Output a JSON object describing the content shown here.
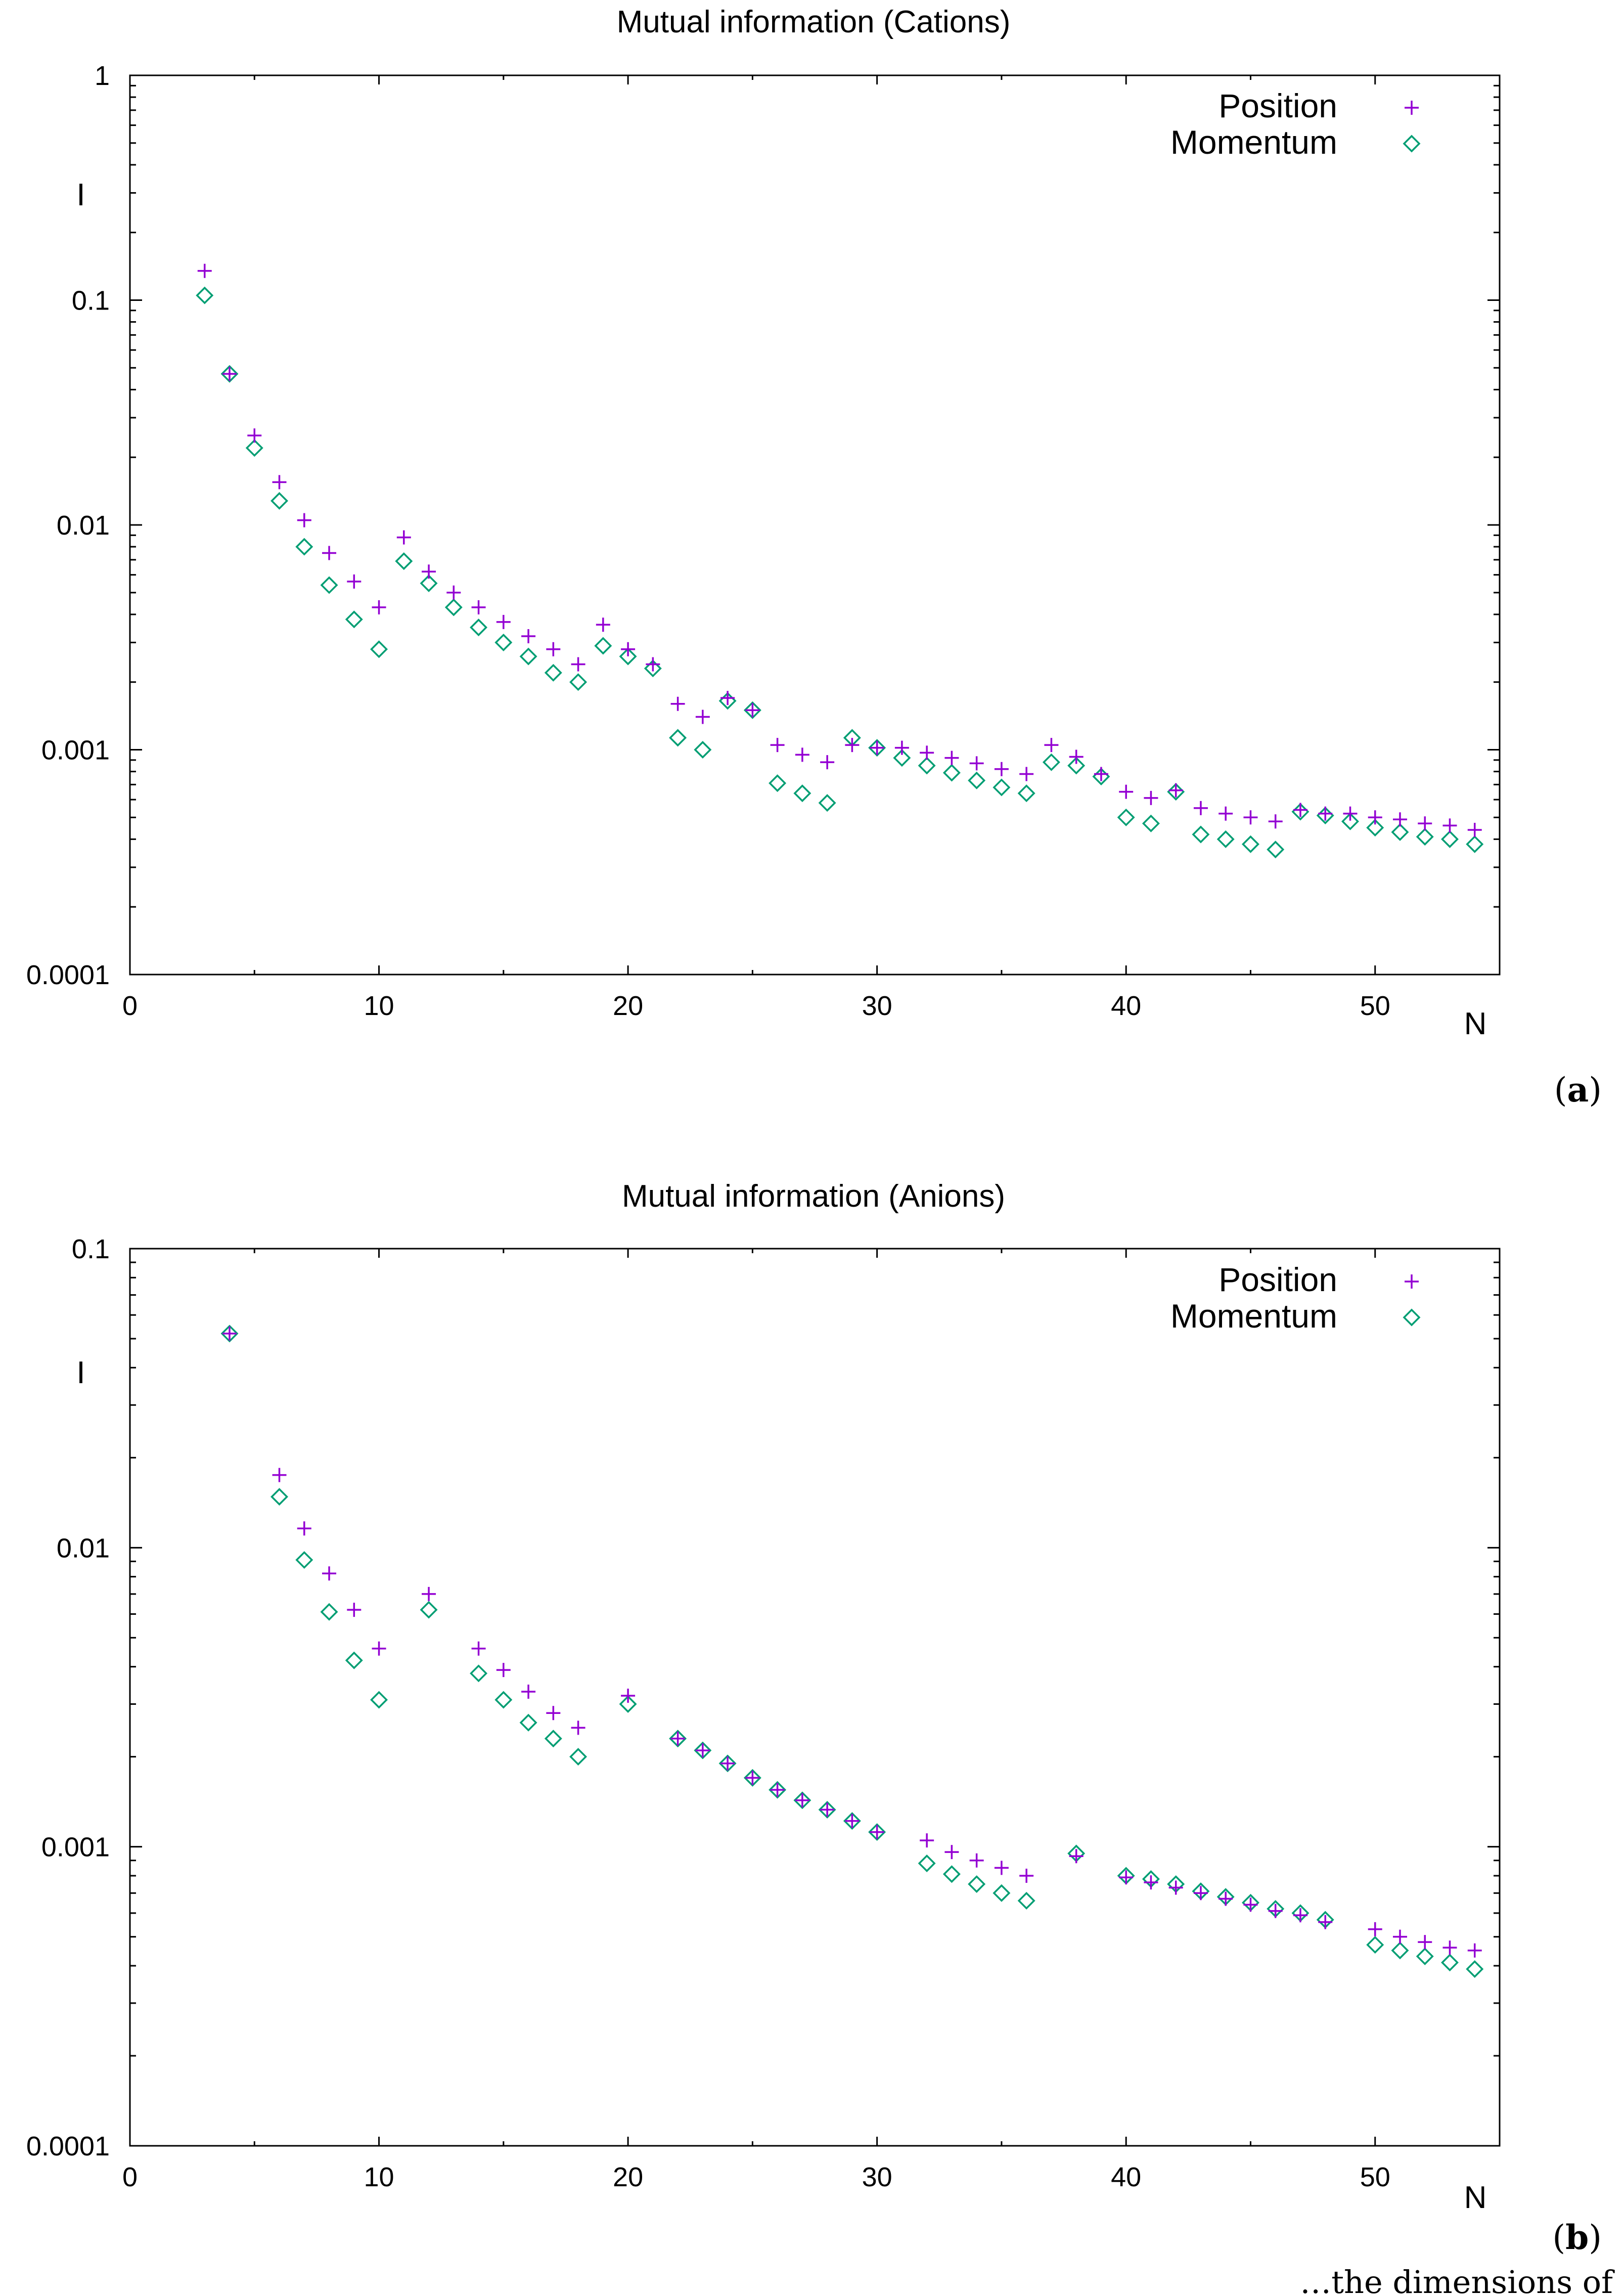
{
  "chart_data": [
    {
      "id": "a",
      "type": "scatter",
      "title": "Mutual information (Cations)",
      "xlabel": "N",
      "ylabel": "I",
      "yscale": "log",
      "xlim": [
        0,
        55
      ],
      "ylim": [
        0.0001,
        1
      ],
      "grid": false,
      "legend_position": "top-right",
      "panel_label": "a",
      "xticks": [
        "0",
        "10",
        "20",
        "30",
        "40",
        "50"
      ],
      "yticks": [
        "1",
        "0.1",
        "0.01",
        "0.001",
        "0.0001"
      ],
      "series": [
        {
          "name": "Position",
          "marker": "plus",
          "color": "#9400d3",
          "x": [
            3,
            4,
            5,
            6,
            7,
            8,
            9,
            10,
            11,
            12,
            13,
            14,
            15,
            16,
            17,
            18,
            19,
            20,
            21,
            22,
            23,
            24,
            25,
            26,
            27,
            28,
            29,
            30,
            31,
            32,
            33,
            34,
            35,
            36,
            37,
            38,
            39,
            40,
            41,
            42,
            43,
            44,
            45,
            46,
            47,
            48,
            49,
            50,
            51,
            52,
            53,
            54
          ],
          "y": [
            0.135,
            0.047,
            0.025,
            0.0155,
            0.0105,
            0.0075,
            0.0056,
            0.0043,
            0.0088,
            0.0062,
            0.005,
            0.0043,
            0.0037,
            0.0032,
            0.0028,
            0.0024,
            0.0036,
            0.0028,
            0.0024,
            0.0016,
            0.0014,
            0.0017,
            0.0015,
            0.00105,
            0.00095,
            0.00088,
            0.00105,
            0.00102,
            0.00102,
            0.00097,
            0.00092,
            0.00087,
            0.00082,
            0.00078,
            0.00105,
            0.00093,
            0.00078,
            0.00065,
            0.00061,
            0.00066,
            0.00055,
            0.00052,
            0.0005,
            0.00048,
            0.00054,
            0.00052,
            0.00052,
            0.0005,
            0.00049,
            0.00047,
            0.00046,
            0.00044
          ]
        },
        {
          "name": "Momentum",
          "marker": "diamond",
          "color": "#009e73",
          "x": [
            3,
            4,
            5,
            6,
            7,
            8,
            9,
            10,
            11,
            12,
            13,
            14,
            15,
            16,
            17,
            18,
            19,
            20,
            21,
            22,
            23,
            24,
            25,
            26,
            27,
            28,
            29,
            30,
            31,
            32,
            33,
            34,
            35,
            36,
            37,
            38,
            39,
            40,
            41,
            42,
            43,
            44,
            45,
            46,
            47,
            48,
            49,
            50,
            51,
            52,
            53,
            54
          ],
          "y": [
            0.105,
            0.047,
            0.022,
            0.0128,
            0.008,
            0.0054,
            0.0038,
            0.0028,
            0.0069,
            0.0055,
            0.0043,
            0.0035,
            0.003,
            0.0026,
            0.0022,
            0.002,
            0.0029,
            0.0026,
            0.0023,
            0.00113,
            0.001,
            0.00165,
            0.0015,
            0.00071,
            0.00064,
            0.00058,
            0.00113,
            0.00102,
            0.00092,
            0.00085,
            0.00079,
            0.00073,
            0.00068,
            0.00064,
            0.00088,
            0.00085,
            0.00076,
            0.0005,
            0.00047,
            0.00065,
            0.00042,
            0.0004,
            0.00038,
            0.00036,
            0.00053,
            0.00051,
            0.00048,
            0.00045,
            0.00043,
            0.00041,
            0.0004,
            0.00038
          ]
        }
      ]
    },
    {
      "id": "b",
      "type": "scatter",
      "title": "Mutual information (Anions)",
      "xlabel": "N",
      "ylabel": "I",
      "yscale": "log",
      "xlim": [
        0,
        55
      ],
      "ylim": [
        0.0001,
        0.1
      ],
      "grid": false,
      "legend_position": "top-right",
      "panel_label": "b",
      "xticks": [
        "0",
        "10",
        "20",
        "30",
        "40",
        "50"
      ],
      "yticks": [
        "0.1",
        "0.01",
        "0.001",
        "0.0001"
      ],
      "series": [
        {
          "name": "Position",
          "marker": "plus",
          "color": "#9400d3",
          "x": [
            4,
            6,
            7,
            8,
            9,
            10,
            12,
            14,
            15,
            16,
            17,
            18,
            20,
            22,
            23,
            24,
            25,
            26,
            27,
            28,
            29,
            30,
            32,
            33,
            34,
            35,
            36,
            38,
            40,
            41,
            42,
            43,
            44,
            45,
            46,
            47,
            48,
            50,
            51,
            52,
            53,
            54
          ],
          "y": [
            0.052,
            0.0175,
            0.0116,
            0.0082,
            0.0062,
            0.0046,
            0.007,
            0.0046,
            0.0039,
            0.0033,
            0.0028,
            0.0025,
            0.0032,
            0.0023,
            0.0021,
            0.0019,
            0.0017,
            0.00155,
            0.00143,
            0.00133,
            0.00122,
            0.00112,
            0.00105,
            0.00096,
            0.0009,
            0.00085,
            0.0008,
            0.00093,
            0.00079,
            0.00076,
            0.00073,
            0.0007,
            0.00067,
            0.00064,
            0.00061,
            0.00059,
            0.00056,
            0.00053,
            0.0005,
            0.00048,
            0.00046,
            0.00045
          ]
        },
        {
          "name": "Momentum",
          "marker": "diamond",
          "color": "#009e73",
          "x": [
            4,
            6,
            7,
            8,
            9,
            10,
            12,
            14,
            15,
            16,
            17,
            18,
            20,
            22,
            23,
            24,
            25,
            26,
            27,
            28,
            29,
            30,
            32,
            33,
            34,
            35,
            36,
            38,
            40,
            41,
            42,
            43,
            44,
            45,
            46,
            47,
            48,
            50,
            51,
            52,
            53,
            54
          ],
          "y": [
            0.052,
            0.0148,
            0.0091,
            0.0061,
            0.0042,
            0.0031,
            0.0062,
            0.0038,
            0.0031,
            0.0026,
            0.0023,
            0.002,
            0.003,
            0.0023,
            0.0021,
            0.0019,
            0.0017,
            0.00155,
            0.00143,
            0.00133,
            0.00122,
            0.00112,
            0.00088,
            0.00081,
            0.00075,
            0.0007,
            0.00066,
            0.00095,
            0.0008,
            0.00078,
            0.00075,
            0.00071,
            0.00068,
            0.00065,
            0.00062,
            0.0006,
            0.00057,
            0.00047,
            0.00045,
            0.00043,
            0.00041,
            0.00039
          ]
        }
      ]
    }
  ],
  "caption_fragment": "…the dimensions of"
}
